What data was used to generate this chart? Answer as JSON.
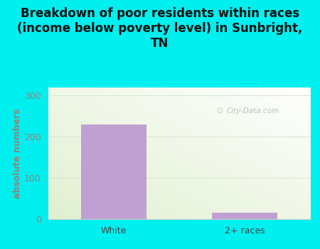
{
  "categories": [
    "White",
    "2+ races"
  ],
  "values": [
    229,
    15
  ],
  "bar_color": "#c0a0d0",
  "title": "Breakdown of poor residents within races\n(income below poverty level) in Sunbright,\nTN",
  "ylabel": "absolute numbers",
  "ylim": [
    0,
    320
  ],
  "yticks": [
    0,
    100,
    200,
    300
  ],
  "background_color": "#00efef",
  "title_fontsize": 12,
  "axis_label_fontsize": 9,
  "tick_fontsize": 9,
  "watermark": "City-Data.com",
  "bar_width": 0.5,
  "gradient_colors": [
    "#e8f5e0",
    "#f8fcf5"
  ],
  "tick_color": "#888880",
  "ylabel_color": "#888880",
  "title_color": "#111111",
  "gridline_color": "#d8e8d0",
  "spine_color": "#cccccc"
}
